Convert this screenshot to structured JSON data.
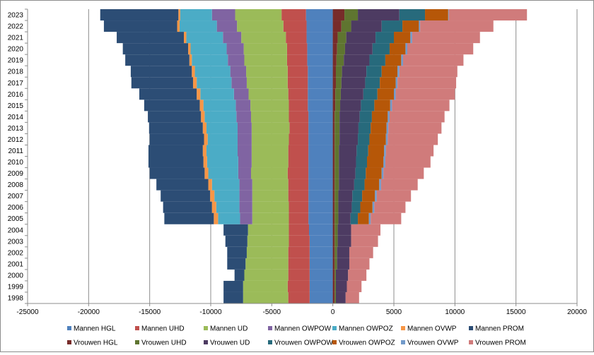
{
  "chart_data": {
    "type": "bar",
    "orientation": "horizontal",
    "stacked": true,
    "x_ticks": [
      -25000,
      -20000,
      -15000,
      -10000,
      -5000,
      0,
      5000,
      10000,
      15000,
      20000
    ],
    "xlim": [
      -25000,
      20000
    ],
    "grid": "vertical",
    "legend_position": "bottom",
    "categories": [
      "1998",
      "1999",
      "2000",
      "2001",
      "2002",
      "2003",
      "2004",
      "2005",
      "2006",
      "2007",
      "2008",
      "2009",
      "2010",
      "2011",
      "2012",
      "2013",
      "2014",
      "2015",
      "2016",
      "2017",
      "2018",
      "2019",
      "2020",
      "2021",
      "2022",
      "2023"
    ],
    "series": [
      {
        "name": "Mannen HGL",
        "color": "#4f81bd",
        "values": [
          -1900,
          -1900,
          -1900,
          -1900,
          -1900,
          -1900,
          -1950,
          -2000,
          -2000,
          -2000,
          -2000,
          -2000,
          -2000,
          -2000,
          -2000,
          -2000,
          -2000,
          -2050,
          -2050,
          -2050,
          -2050,
          -2100,
          -2100,
          -2150,
          -2150,
          -2200
        ]
      },
      {
        "name": "Mannen UHD",
        "color": "#c0504d",
        "values": [
          -1750,
          -1800,
          -1750,
          -1750,
          -1750,
          -1700,
          -1650,
          -1600,
          -1600,
          -1650,
          -1650,
          -1700,
          -1650,
          -1650,
          -1600,
          -1550,
          -1600,
          -1550,
          -1600,
          -1650,
          -1650,
          -1650,
          -1650,
          -1700,
          -1900,
          -2000
        ]
      },
      {
        "name": "Mannen UD",
        "color": "#9bbb59",
        "values": [
          -3700,
          -3650,
          -3600,
          -3500,
          -3400,
          -3400,
          -3350,
          -3000,
          -3000,
          -2950,
          -2950,
          -3000,
          -3000,
          -3000,
          -3050,
          -3100,
          -3100,
          -3150,
          -3250,
          -3350,
          -3400,
          -3500,
          -3550,
          -3650,
          -3800,
          -3800
        ]
      },
      {
        "name": "Mannen OWPOW",
        "color": "#8064a2",
        "values": [
          0,
          0,
          0,
          0,
          0,
          0,
          0,
          -1000,
          -1050,
          -1050,
          -1050,
          -1050,
          -1100,
          -1150,
          -1150,
          -1150,
          -1200,
          -1200,
          -1200,
          -1250,
          -1300,
          -1350,
          -1400,
          -1500,
          -1650,
          -1900
        ]
      },
      {
        "name": "Mannen OWPOZ",
        "color": "#4bacc6",
        "values": [
          0,
          0,
          0,
          0,
          0,
          0,
          0,
          -1800,
          -1900,
          -2050,
          -2250,
          -2450,
          -2550,
          -2550,
          -2450,
          -2550,
          -2600,
          -2650,
          -2750,
          -2850,
          -2900,
          -2950,
          -2950,
          -3000,
          -3050,
          -2600
        ]
      },
      {
        "name": "Mannen OVWP",
        "color": "#f79646",
        "values": [
          0,
          0,
          0,
          0,
          0,
          0,
          0,
          -350,
          -350,
          -350,
          -300,
          -300,
          -300,
          -300,
          -300,
          -300,
          -300,
          -300,
          -300,
          -300,
          -250,
          -200,
          -200,
          -200,
          -200,
          -150
        ]
      },
      {
        "name": "Mannen PROM",
        "color": "#2c4d75",
        "values": [
          -1600,
          -1600,
          -800,
          -1500,
          -1600,
          -1800,
          -2000,
          -4050,
          -4000,
          -4050,
          -4250,
          -4500,
          -4500,
          -4450,
          -4450,
          -4400,
          -4350,
          -4550,
          -4700,
          -5050,
          -5000,
          -5250,
          -5350,
          -5500,
          -6000,
          -6400
        ]
      },
      {
        "name": "Vrouwen HGL",
        "color": "#772c2a",
        "values": [
          150,
          150,
          150,
          150,
          150,
          150,
          150,
          150,
          150,
          150,
          150,
          150,
          150,
          150,
          150,
          150,
          150,
          200,
          200,
          250,
          250,
          300,
          350,
          400,
          700,
          950
        ]
      },
      {
        "name": "Vrouwen UHD",
        "color": "#5f7530",
        "values": [
          100,
          100,
          100,
          200,
          200,
          250,
          250,
          300,
          300,
          300,
          350,
          350,
          350,
          350,
          400,
          400,
          400,
          400,
          450,
          450,
          500,
          600,
          650,
          700,
          800,
          1100
        ]
      },
      {
        "name": "Vrouwen UD",
        "color": "#4d3b62",
        "values": [
          800,
          900,
          1000,
          1000,
          1000,
          1100,
          1100,
          1000,
          1100,
          1150,
          1250,
          1350,
          1400,
          1450,
          1500,
          1550,
          1650,
          1700,
          1850,
          1950,
          2000,
          2100,
          2250,
          2400,
          2500,
          3400
        ]
      },
      {
        "name": "Vrouwen OWPOW",
        "color": "#276a7c",
        "values": [
          0,
          0,
          0,
          0,
          0,
          0,
          0,
          600,
          700,
          800,
          850,
          850,
          900,
          950,
          950,
          1000,
          1000,
          1100,
          1150,
          1200,
          1250,
          1300,
          1400,
          1500,
          1700,
          2100
        ]
      },
      {
        "name": "Vrouwen OWPOZ",
        "color": "#b65708",
        "values": [
          0,
          0,
          0,
          0,
          0,
          0,
          0,
          900,
          1000,
          1050,
          1200,
          1300,
          1350,
          1300,
          1350,
          1300,
          1300,
          1300,
          1350,
          1300,
          1300,
          1300,
          1300,
          1350,
          1350,
          1900
        ]
      },
      {
        "name": "Vrouwen OVWP",
        "color": "#729aca",
        "values": [
          0,
          0,
          0,
          0,
          0,
          0,
          0,
          150,
          150,
          150,
          150,
          150,
          150,
          150,
          150,
          150,
          150,
          150,
          150,
          150,
          150,
          150,
          150,
          150,
          100,
          50
        ]
      },
      {
        "name": "Vrouwen PROM",
        "color": "#d07b7b",
        "values": [
          1100,
          1200,
          1500,
          1650,
          1950,
          2200,
          2400,
          2500,
          2550,
          2800,
          3000,
          3300,
          3700,
          3900,
          4100,
          4350,
          4500,
          4700,
          4850,
          4800,
          4750,
          4950,
          5400,
          5550,
          6000,
          6400
        ]
      }
    ]
  }
}
